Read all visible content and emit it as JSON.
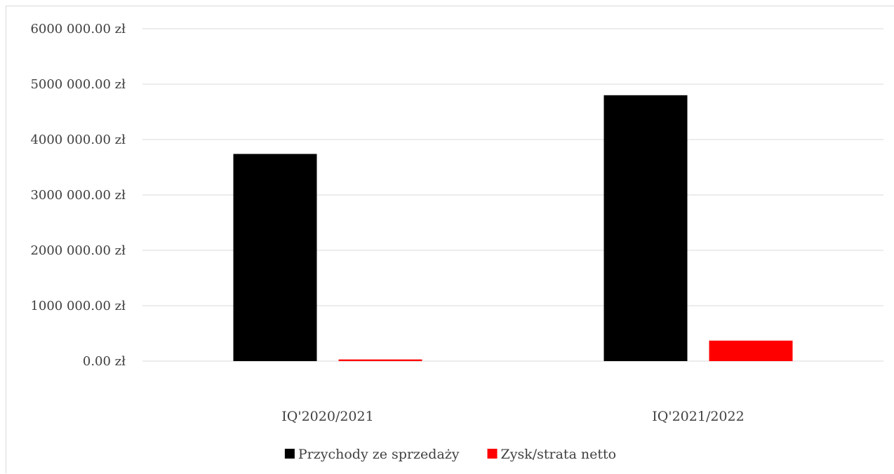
{
  "chart_data": {
    "type": "bar",
    "title": "",
    "xlabel": "",
    "ylabel": "",
    "categories": [
      "IQ'2020/2021",
      "IQ'2021/2022"
    ],
    "series": [
      {
        "name": "Przychody ze sprzedaży",
        "color": "#000000",
        "values": [
          3740000,
          4800000
        ]
      },
      {
        "name": "Zysk/strata netto",
        "color": "#ff0000",
        "values": [
          30000,
          370000
        ]
      }
    ],
    "ylim": [
      0,
      6000000
    ],
    "yticks": [
      0,
      1000000,
      2000000,
      3000000,
      4000000,
      5000000,
      6000000
    ],
    "ytick_labels": [
      "0.00 zł",
      "1000 000.00 zł",
      "2000 000.00 zł",
      "3000 000.00 zł",
      "4000 000.00 zł",
      "5000 000.00 zł",
      "6000 000.00 zł"
    ],
    "grid": true,
    "grid_color": "#d9d9d9",
    "legend_position": "bottom"
  }
}
